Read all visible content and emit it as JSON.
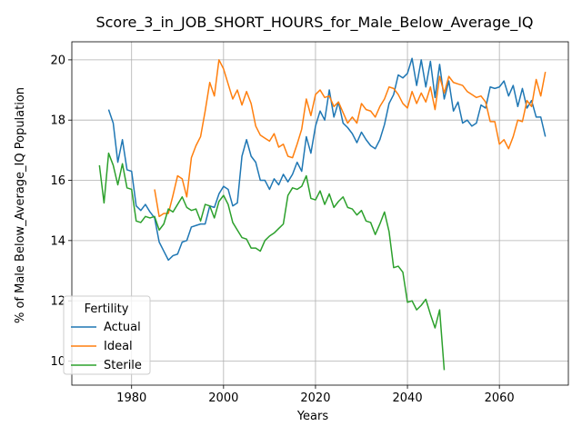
{
  "chart_data": {
    "type": "line",
    "title": "Score_3_in_JOB_SHORT_HOURS_for_Male_Below_Average_IQ",
    "xlabel": "Years",
    "ylabel": "% of Male Below_Average_IQ Population",
    "xlim": [
      1967,
      2075
    ],
    "ylim": [
      9.2,
      20.6
    ],
    "xticks": [
      1980,
      2000,
      2020,
      2040,
      2060
    ],
    "yticks": [
      10,
      12,
      14,
      16,
      18,
      20
    ],
    "grid": true,
    "legend": {
      "title": "Fertility",
      "placement": "lower-left"
    },
    "series": [
      {
        "name": "Actual",
        "color": "#1f77b4",
        "points": [
          [
            1975,
            18.35
          ],
          [
            1976,
            17.9
          ],
          [
            1977,
            16.6
          ],
          [
            1978,
            17.35
          ],
          [
            1979,
            16.35
          ],
          [
            1980,
            16.3
          ],
          [
            1981,
            15.15
          ],
          [
            1982,
            15.0
          ],
          [
            1983,
            15.2
          ],
          [
            1984,
            14.95
          ],
          [
            1985,
            14.75
          ],
          [
            1986,
            13.95
          ],
          [
            1987,
            13.65
          ],
          [
            1988,
            13.35
          ],
          [
            1989,
            13.5
          ],
          [
            1990,
            13.55
          ],
          [
            1991,
            13.95
          ],
          [
            1992,
            14.0
          ],
          [
            1993,
            14.45
          ],
          [
            1994,
            14.5
          ],
          [
            1995,
            14.55
          ],
          [
            1996,
            14.55
          ],
          [
            1997,
            15.15
          ],
          [
            1998,
            15.1
          ],
          [
            1999,
            15.55
          ],
          [
            2000,
            15.8
          ],
          [
            2001,
            15.7
          ],
          [
            2002,
            15.15
          ],
          [
            2003,
            15.25
          ],
          [
            2004,
            16.8
          ],
          [
            2005,
            17.35
          ],
          [
            2006,
            16.8
          ],
          [
            2007,
            16.6
          ],
          [
            2008,
            16.0
          ],
          [
            2009,
            16.0
          ],
          [
            2010,
            15.7
          ],
          [
            2011,
            16.05
          ],
          [
            2012,
            15.85
          ],
          [
            2013,
            16.2
          ],
          [
            2014,
            15.95
          ],
          [
            2015,
            16.2
          ],
          [
            2016,
            16.6
          ],
          [
            2017,
            16.3
          ],
          [
            2018,
            17.45
          ],
          [
            2019,
            16.9
          ],
          [
            2020,
            17.8
          ],
          [
            2021,
            18.3
          ],
          [
            2022,
            18.0
          ],
          [
            2023,
            19.0
          ],
          [
            2024,
            18.1
          ],
          [
            2025,
            18.6
          ],
          [
            2026,
            17.9
          ],
          [
            2027,
            17.75
          ],
          [
            2028,
            17.55
          ],
          [
            2029,
            17.25
          ],
          [
            2030,
            17.6
          ],
          [
            2031,
            17.35
          ],
          [
            2032,
            17.15
          ],
          [
            2033,
            17.05
          ],
          [
            2034,
            17.35
          ],
          [
            2035,
            17.85
          ],
          [
            2036,
            18.55
          ],
          [
            2037,
            18.85
          ],
          [
            2038,
            19.5
          ],
          [
            2039,
            19.4
          ],
          [
            2040,
            19.55
          ],
          [
            2041,
            20.05
          ],
          [
            2042,
            19.15
          ],
          [
            2043,
            20.0
          ],
          [
            2044,
            19.1
          ],
          [
            2045,
            19.95
          ],
          [
            2046,
            18.75
          ],
          [
            2047,
            19.85
          ],
          [
            2048,
            18.7
          ],
          [
            2049,
            19.3
          ],
          [
            2050,
            18.3
          ],
          [
            2051,
            18.6
          ],
          [
            2052,
            17.9
          ],
          [
            2053,
            18.0
          ],
          [
            2054,
            17.8
          ],
          [
            2055,
            17.9
          ],
          [
            2056,
            18.5
          ],
          [
            2057,
            18.4
          ],
          [
            2058,
            19.1
          ],
          [
            2059,
            19.05
          ],
          [
            2060,
            19.1
          ],
          [
            2061,
            19.3
          ],
          [
            2062,
            18.8
          ],
          [
            2063,
            19.15
          ],
          [
            2064,
            18.45
          ],
          [
            2065,
            19.05
          ],
          [
            2066,
            18.4
          ],
          [
            2067,
            18.65
          ],
          [
            2068,
            18.1
          ],
          [
            2069,
            18.1
          ],
          [
            2070,
            17.45
          ]
        ]
      },
      {
        "name": "Ideal",
        "color": "#ff7f0e",
        "points": [
          [
            1985,
            15.7
          ],
          [
            1986,
            14.8
          ],
          [
            1987,
            14.9
          ],
          [
            1988,
            14.9
          ],
          [
            1989,
            15.5
          ],
          [
            1990,
            16.15
          ],
          [
            1991,
            16.05
          ],
          [
            1992,
            15.45
          ],
          [
            1993,
            16.75
          ],
          [
            1994,
            17.15
          ],
          [
            1995,
            17.45
          ],
          [
            1996,
            18.3
          ],
          [
            1997,
            19.25
          ],
          [
            1998,
            18.8
          ],
          [
            1999,
            20.0
          ],
          [
            2000,
            19.7
          ],
          [
            2001,
            19.2
          ],
          [
            2002,
            18.7
          ],
          [
            2003,
            19.0
          ],
          [
            2004,
            18.5
          ],
          [
            2005,
            18.95
          ],
          [
            2006,
            18.55
          ],
          [
            2007,
            17.8
          ],
          [
            2008,
            17.5
          ],
          [
            2009,
            17.4
          ],
          [
            2010,
            17.3
          ],
          [
            2011,
            17.55
          ],
          [
            2012,
            17.1
          ],
          [
            2013,
            17.2
          ],
          [
            2014,
            16.8
          ],
          [
            2015,
            16.75
          ],
          [
            2016,
            17.2
          ],
          [
            2017,
            17.7
          ],
          [
            2018,
            18.7
          ],
          [
            2019,
            18.15
          ],
          [
            2020,
            18.85
          ],
          [
            2021,
            19.0
          ],
          [
            2022,
            18.75
          ],
          [
            2023,
            18.8
          ],
          [
            2024,
            18.45
          ],
          [
            2025,
            18.6
          ],
          [
            2026,
            18.25
          ],
          [
            2027,
            17.9
          ],
          [
            2028,
            18.1
          ],
          [
            2029,
            17.9
          ],
          [
            2030,
            18.55
          ],
          [
            2031,
            18.35
          ],
          [
            2032,
            18.3
          ],
          [
            2033,
            18.1
          ],
          [
            2034,
            18.45
          ],
          [
            2035,
            18.7
          ],
          [
            2036,
            19.1
          ],
          [
            2037,
            19.05
          ],
          [
            2038,
            18.85
          ],
          [
            2039,
            18.55
          ],
          [
            2040,
            18.4
          ],
          [
            2041,
            18.95
          ],
          [
            2042,
            18.55
          ],
          [
            2043,
            18.9
          ],
          [
            2044,
            18.6
          ],
          [
            2045,
            19.1
          ],
          [
            2046,
            18.35
          ],
          [
            2047,
            19.45
          ],
          [
            2048,
            18.9
          ],
          [
            2049,
            19.45
          ],
          [
            2050,
            19.25
          ],
          [
            2051,
            19.2
          ],
          [
            2052,
            19.15
          ],
          [
            2053,
            18.95
          ],
          [
            2054,
            18.85
          ],
          [
            2055,
            18.75
          ],
          [
            2056,
            18.8
          ],
          [
            2057,
            18.6
          ],
          [
            2058,
            17.95
          ],
          [
            2059,
            17.95
          ],
          [
            2060,
            17.2
          ],
          [
            2061,
            17.35
          ],
          [
            2062,
            17.05
          ],
          [
            2063,
            17.45
          ],
          [
            2064,
            18.0
          ],
          [
            2065,
            17.95
          ],
          [
            2066,
            18.65
          ],
          [
            2067,
            18.45
          ],
          [
            2068,
            19.35
          ],
          [
            2069,
            18.8
          ],
          [
            2070,
            19.6
          ]
        ]
      },
      {
        "name": "Sterile",
        "color": "#2ca02c",
        "points": [
          [
            1973,
            16.5
          ],
          [
            1974,
            15.25
          ],
          [
            1975,
            16.9
          ],
          [
            1976,
            16.5
          ],
          [
            1977,
            15.85
          ],
          [
            1978,
            16.55
          ],
          [
            1979,
            15.75
          ],
          [
            1980,
            15.7
          ],
          [
            1981,
            14.65
          ],
          [
            1982,
            14.6
          ],
          [
            1983,
            14.8
          ],
          [
            1984,
            14.75
          ],
          [
            1985,
            14.8
          ],
          [
            1986,
            14.35
          ],
          [
            1987,
            14.55
          ],
          [
            1988,
            15.05
          ],
          [
            1989,
            14.95
          ],
          [
            1990,
            15.2
          ],
          [
            1991,
            15.45
          ],
          [
            1992,
            15.1
          ],
          [
            1993,
            15.0
          ],
          [
            1994,
            15.05
          ],
          [
            1995,
            14.65
          ],
          [
            1996,
            15.2
          ],
          [
            1997,
            15.15
          ],
          [
            1998,
            14.75
          ],
          [
            1999,
            15.3
          ],
          [
            2000,
            15.5
          ],
          [
            2001,
            15.2
          ],
          [
            2002,
            14.6
          ],
          [
            2003,
            14.35
          ],
          [
            2004,
            14.1
          ],
          [
            2005,
            14.05
          ],
          [
            2006,
            13.75
          ],
          [
            2007,
            13.75
          ],
          [
            2008,
            13.65
          ],
          [
            2009,
            14.0
          ],
          [
            2010,
            14.15
          ],
          [
            2011,
            14.25
          ],
          [
            2012,
            14.4
          ],
          [
            2013,
            14.55
          ],
          [
            2014,
            15.5
          ],
          [
            2015,
            15.75
          ],
          [
            2016,
            15.7
          ],
          [
            2017,
            15.8
          ],
          [
            2018,
            16.15
          ],
          [
            2019,
            15.4
          ],
          [
            2020,
            15.35
          ],
          [
            2021,
            15.65
          ],
          [
            2022,
            15.2
          ],
          [
            2023,
            15.55
          ],
          [
            2024,
            15.1
          ],
          [
            2025,
            15.3
          ],
          [
            2026,
            15.45
          ],
          [
            2027,
            15.1
          ],
          [
            2028,
            15.05
          ],
          [
            2029,
            14.85
          ],
          [
            2030,
            15.0
          ],
          [
            2031,
            14.65
          ],
          [
            2032,
            14.6
          ],
          [
            2033,
            14.2
          ],
          [
            2034,
            14.55
          ],
          [
            2035,
            14.95
          ],
          [
            2036,
            14.3
          ],
          [
            2037,
            13.1
          ],
          [
            2038,
            13.15
          ],
          [
            2039,
            12.95
          ],
          [
            2040,
            11.95
          ],
          [
            2041,
            12.0
          ],
          [
            2042,
            11.7
          ],
          [
            2043,
            11.85
          ],
          [
            2044,
            12.05
          ],
          [
            2045,
            11.55
          ],
          [
            2046,
            11.1
          ],
          [
            2047,
            11.7
          ],
          [
            2048,
            9.7
          ]
        ]
      }
    ]
  }
}
